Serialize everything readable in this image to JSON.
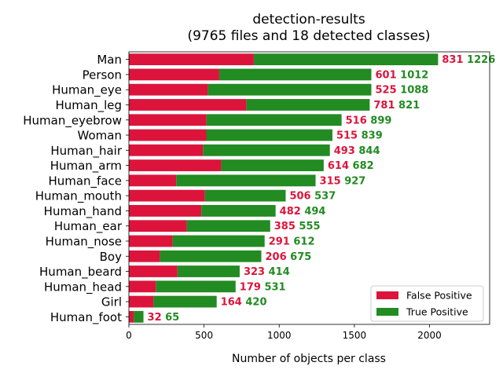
{
  "chart_data": {
    "type": "bar",
    "orientation": "horizontal",
    "stacked": true,
    "title": "detection-results",
    "subtitle": "(9765 files and 18 detected classes)",
    "xlabel": "Number of objects per class",
    "ylabel": "",
    "xlim": [
      0,
      2400
    ],
    "xticks": [
      0,
      500,
      1000,
      1500,
      2000
    ],
    "xtick_labels": [
      "0",
      "500",
      "1000",
      "1500",
      "2000"
    ],
    "grid": false,
    "legend_position": "lower-right",
    "categories": [
      "Man",
      "Person",
      "Human_eye",
      "Human_leg",
      "Human_eyebrow",
      "Woman",
      "Human_hair",
      "Human_arm",
      "Human_face",
      "Human_mouth",
      "Human_hand",
      "Human_ear",
      "Human_nose",
      "Boy",
      "Human_beard",
      "Human_head",
      "Girl",
      "Human_foot"
    ],
    "series": [
      {
        "name": "False Positive",
        "color": "#dc143c",
        "values": [
          831,
          601,
          525,
          781,
          516,
          515,
          493,
          614,
          315,
          506,
          482,
          385,
          291,
          206,
          323,
          179,
          164,
          32
        ]
      },
      {
        "name": "True Positive",
        "color": "#228b22",
        "values": [
          1226,
          1012,
          1088,
          821,
          899,
          839,
          844,
          682,
          927,
          537,
          494,
          555,
          612,
          675,
          414,
          531,
          420,
          65
        ]
      }
    ]
  }
}
